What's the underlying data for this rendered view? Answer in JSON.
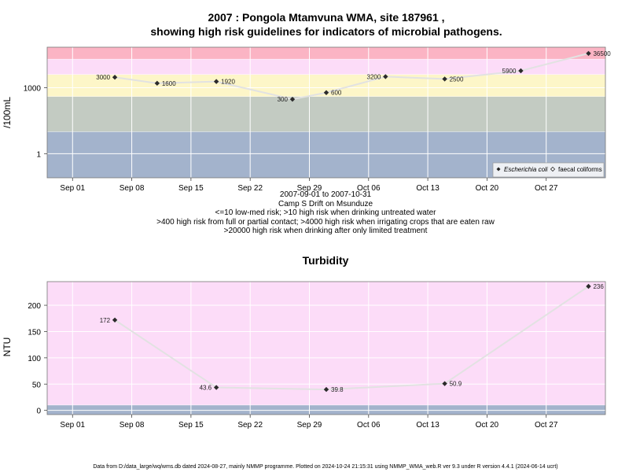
{
  "figure": {
    "title_line1": "2007 : Pongola Mtamvuna WMA, site 187961 ,",
    "title_line2": "showing high risk guidelines for indicators of microbial pathogens.",
    "date_range": "2007-09-01 to 2007-10-31",
    "location": "Camp S Drift on Msunduze",
    "guideline1": "<=10 low-med risk; >10 high risk when drinking untreated water",
    "guideline2": ">400 high risk from full or partial contact; >4000 high risk when irrigating crops that are eaten raw",
    "guideline3": ">20000 high risk when drinking after only limited treatment",
    "footer": "Data from D:/data_large/wq/wms.db dated 2024-08-27, mainly NMMP programme. Plotted on 2024-10-24 21:15:31 using NMMP_WMA_web.R ver 9.3 under R version 4.4.1 (2024-06-14 ucrt)"
  },
  "chart_data": [
    {
      "type": "line",
      "title": "",
      "ylabel": "/100mL",
      "xlabel": "",
      "yscale": "log10",
      "ylim": [
        0.08,
        70000
      ],
      "yticks": [
        1,
        1000
      ],
      "ytick_labels": [
        "1",
        "1000"
      ],
      "xlim": [
        "2007-08-29",
        "2007-11-03"
      ],
      "xticks": [
        "2007-09-01",
        "2007-09-08",
        "2007-09-15",
        "2007-09-22",
        "2007-09-29",
        "2007-10-06",
        "2007-10-13",
        "2007-10-20",
        "2007-10-27"
      ],
      "xtick_labels": [
        "Sep 01",
        "Sep 08",
        "Sep 15",
        "Sep 22",
        "Sep 29",
        "Oct 06",
        "Oct 13",
        "Oct 20",
        "Oct 27"
      ],
      "grid": true,
      "bands": [
        {
          "from": 0.08,
          "to": 10,
          "color": "#a3b3cc"
        },
        {
          "from": 10,
          "to": 400,
          "color": "#c3cbc2"
        },
        {
          "from": 400,
          "to": 4000,
          "color": "#fdf6c8"
        },
        {
          "from": 4000,
          "to": 20000,
          "color": "#fcdcf8"
        },
        {
          "from": 20000,
          "to": 70000,
          "color": "#fbb4c4"
        }
      ],
      "legend": {
        "position": "bottom-right",
        "entries": [
          "Escherichia coli",
          "faecal coliforms"
        ]
      },
      "series": [
        {
          "name": "Escherichia coli",
          "marker": "filled-diamond",
          "points": [
            {
              "x": "2007-09-06",
              "y": 3000,
              "label": "3000",
              "side": "left"
            },
            {
              "x": "2007-09-11",
              "y": 1600,
              "label": "1600",
              "side": "right"
            },
            {
              "x": "2007-09-18",
              "y": 1920,
              "label": "1920",
              "side": "right"
            },
            {
              "x": "2007-09-27",
              "y": 300,
              "label": "300",
              "side": "left"
            },
            {
              "x": "2007-10-01",
              "y": 600,
              "label": "600",
              "side": "right"
            },
            {
              "x": "2007-10-08",
              "y": 3200,
              "label": "3200",
              "side": "left"
            },
            {
              "x": "2007-10-15",
              "y": 2500,
              "label": "2500",
              "side": "right"
            },
            {
              "x": "2007-10-24",
              "y": 5900,
              "label": "5900",
              "side": "left"
            },
            {
              "x": "2007-11-01",
              "y": 36500,
              "label": "36500",
              "side": "right"
            }
          ]
        }
      ]
    },
    {
      "type": "line",
      "title": "Turbidity",
      "ylabel": "NTU",
      "xlabel": "",
      "yscale": "linear",
      "ylim": [
        -8,
        245
      ],
      "yticks": [
        0,
        50,
        100,
        150,
        200
      ],
      "ytick_labels": [
        "0",
        "50",
        "100",
        "150",
        "200"
      ],
      "xlim": [
        "2007-08-29",
        "2007-11-03"
      ],
      "xticks": [
        "2007-09-01",
        "2007-09-08",
        "2007-09-15",
        "2007-09-22",
        "2007-09-29",
        "2007-10-06",
        "2007-10-13",
        "2007-10-20",
        "2007-10-27"
      ],
      "xtick_labels": [
        "Sep 01",
        "Sep 08",
        "Sep 15",
        "Sep 22",
        "Sep 29",
        "Oct 06",
        "Oct 13",
        "Oct 20",
        "Oct 27"
      ],
      "grid": true,
      "bands": [
        {
          "from": -8,
          "to": 10,
          "color": "#a3b3cc"
        },
        {
          "from": 10,
          "to": 245,
          "color": "#fcdcf8"
        }
      ],
      "series": [
        {
          "name": "",
          "marker": "filled-diamond",
          "points": [
            {
              "x": "2007-09-06",
              "y": 172,
              "label": "172",
              "side": "left"
            },
            {
              "x": "2007-09-18",
              "y": 43.6,
              "label": "43.6",
              "side": "left"
            },
            {
              "x": "2007-10-01",
              "y": 39.8,
              "label": "39.8",
              "side": "right"
            },
            {
              "x": "2007-10-15",
              "y": 50.9,
              "label": "50.9",
              "side": "right"
            },
            {
              "x": "2007-11-01",
              "y": 236,
              "label": "236",
              "side": "right"
            }
          ]
        }
      ]
    }
  ]
}
